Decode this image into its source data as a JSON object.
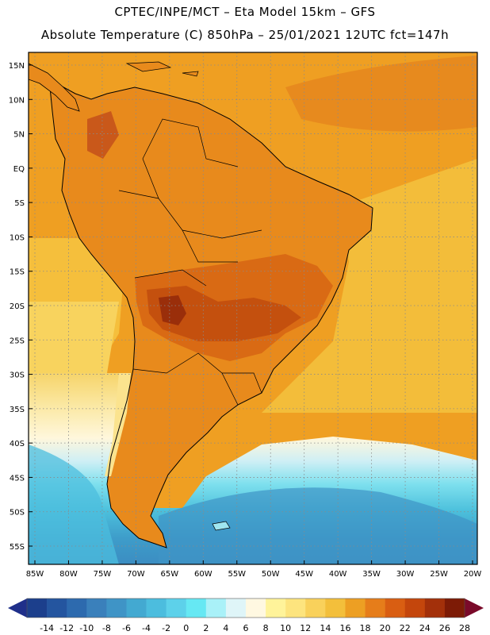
{
  "header": {
    "line1": "CPTEC/INPE/MCT –  Eta Model 15km – GFS",
    "line2": "Absolute Temperature (C) 850hPa – 25/01/2021 12UTC fct=147h"
  },
  "map": {
    "lat_labels": [
      "15N",
      "10N",
      "5N",
      "EQ",
      "5S",
      "10S",
      "15S",
      "20S",
      "25S",
      "30S",
      "35S",
      "40S",
      "45S",
      "50S",
      "55S"
    ],
    "lon_labels": [
      "85W",
      "80W",
      "75W",
      "70W",
      "65W",
      "60W",
      "55W",
      "50W",
      "45W",
      "40W",
      "35W",
      "30W",
      "25W",
      "20W"
    ]
  },
  "legend": {
    "labels": [
      "-14",
      "-12",
      "-10",
      "-8",
      "-6",
      "-4",
      "-2",
      "0",
      "2",
      "4",
      "6",
      "8",
      "10",
      "12",
      "14",
      "16",
      "18",
      "20",
      "22",
      "24",
      "26",
      "28"
    ],
    "colors": [
      "#1c3f8c",
      "#24559f",
      "#2d6aae",
      "#3a80bb",
      "#3f94c6",
      "#43a9d1",
      "#4cbdde",
      "#5dd1ea",
      "#66e8f3",
      "#a9f1f8",
      "#dff5f8",
      "#fff8e1",
      "#fff39a",
      "#fde47e",
      "#f9d15b",
      "#f3bf3b",
      "#ed9f23",
      "#e67d1a",
      "#d95e12",
      "#c4460c",
      "#a3300a",
      "#7d1b06"
    ],
    "low_end_color": "#1f2f8a",
    "high_end_color": "#7a0a2a"
  }
}
